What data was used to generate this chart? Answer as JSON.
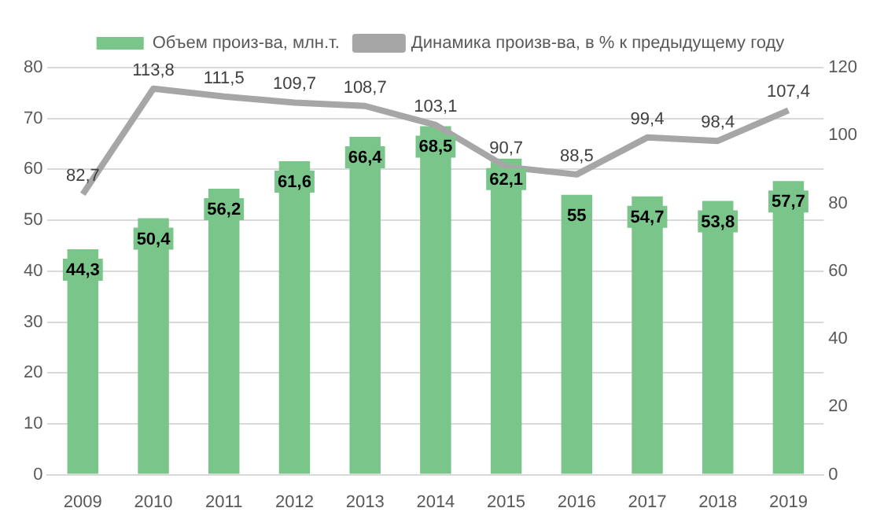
{
  "chart_data": {
    "type": "bar",
    "categories": [
      "2009",
      "2010",
      "2011",
      "2012",
      "2013",
      "2014",
      "2015",
      "2016",
      "2017",
      "2018",
      "2019"
    ],
    "series": [
      {
        "name": "Объем произ-ва, млн.т.",
        "color": "#7ac68a",
        "values": [
          44.3,
          50.4,
          56.2,
          61.6,
          66.4,
          68.5,
          62.1,
          55,
          54.7,
          53.8,
          57.7
        ],
        "value_labels": [
          "44,3",
          "50,4",
          "56,2",
          "61,6",
          "66,4",
          "68,5",
          "62,1",
          "55",
          "54,7",
          "53,8",
          "57,7"
        ]
      },
      {
        "name": "Динамика произв-ва, в % к предыдущему году",
        "type": "line",
        "axis": "y2",
        "color": "#a6a6a6",
        "values": [
          82.7,
          113.8,
          111.5,
          109.7,
          108.7,
          103.1,
          90.7,
          88.5,
          99.4,
          98.4,
          107.4
        ],
        "value_labels": [
          "82,7",
          "113,8",
          "111,5",
          "109,7",
          "108,7",
          "103,1",
          "90,7",
          "88,5",
          "99,4",
          "98,4",
          "107,4"
        ]
      }
    ],
    "ylim": [
      0,
      80
    ],
    "yticks": [
      0,
      10,
      20,
      30,
      40,
      50,
      60,
      70,
      80
    ],
    "y2lim": [
      0,
      120
    ],
    "y2ticks": [
      0,
      20,
      40,
      60,
      80,
      100,
      120
    ],
    "grid": "y",
    "legend": "top",
    "marker": "none"
  }
}
